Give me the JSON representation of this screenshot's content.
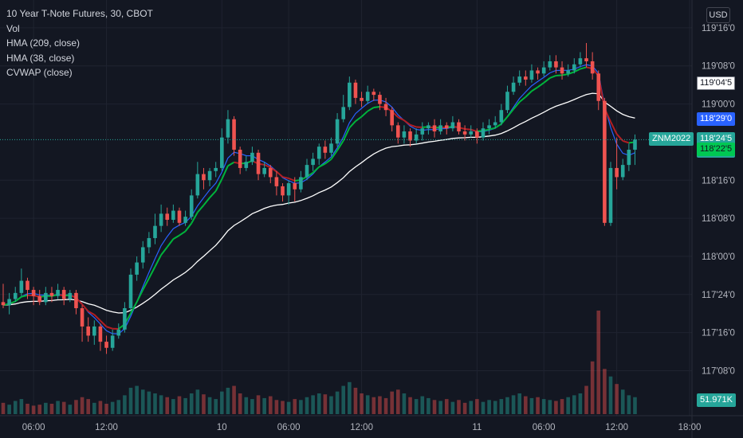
{
  "chart_data": {
    "type": "candlestick",
    "title": "10 Year T-Note Futures, 30, CBOT",
    "legend_lines": [
      "Vol",
      "HMA (209, close)",
      "HMA (38, close)",
      "CVWAP (close)"
    ],
    "currency": "USD",
    "y_ticks": [
      {
        "label": "119'16'0",
        "value": 119.5
      },
      {
        "label": "119'08'0",
        "value": 119.25
      },
      {
        "label": "119'00'0",
        "value": 119.0
      },
      {
        "label": "118'16'0",
        "value": 118.5
      },
      {
        "label": "118'08'0",
        "value": 118.25
      },
      {
        "label": "118'00'0",
        "value": 118.0
      },
      {
        "label": "117'24'0",
        "value": 117.75
      },
      {
        "label": "117'16'0",
        "value": 117.5
      },
      {
        "label": "117'08'0",
        "value": 117.25
      }
    ],
    "ylim": [
      117.08,
      119.63
    ],
    "x_ticks": [
      {
        "label": "06:00",
        "bar": 5
      },
      {
        "label": "12:00",
        "bar": 17
      },
      {
        "label": "10",
        "bar": 36
      },
      {
        "label": "06:00",
        "bar": 47
      },
      {
        "label": "12:00",
        "bar": 59
      },
      {
        "label": "11",
        "bar": 78
      },
      {
        "label": "06:00",
        "bar": 89
      },
      {
        "label": "12:00",
        "bar": 101
      },
      {
        "label": "18:00",
        "bar": 113
      }
    ],
    "price_tags": [
      {
        "label": "119'04'5",
        "value": 119.14,
        "style": "white"
      },
      {
        "label": "118'29'0",
        "value": 118.906,
        "style": "blue"
      },
      {
        "label": "118'24'5",
        "value": 118.766,
        "style": "teal",
        "symbol": "ZNM2022",
        "countdown": "17:17"
      },
      {
        "label": "118'22'5",
        "value": 118.703,
        "style": "green"
      }
    ],
    "volume_label": "51.971K",
    "volume_max": 110,
    "colors": {
      "up": "#26a69a",
      "down": "#ef5350",
      "hma209": "#ffffff",
      "hma38": "#2962ff",
      "cvwap_up": "#00b43c",
      "cvwap_down": "#b21e23",
      "bg": "#131722",
      "grid": "#1f2330"
    },
    "candles": [
      [
        117.7,
        117.68,
        117.82,
        117.66
      ],
      [
        117.68,
        117.72,
        117.76,
        117.62
      ],
      [
        117.72,
        117.76,
        117.8,
        117.7
      ],
      [
        117.76,
        117.84,
        117.92,
        117.74
      ],
      [
        117.84,
        117.78,
        117.86,
        117.72
      ],
      [
        117.78,
        117.74,
        117.8,
        117.68
      ],
      [
        117.74,
        117.7,
        117.78,
        117.68
      ],
      [
        117.7,
        117.76,
        117.8,
        117.68
      ],
      [
        117.76,
        117.74,
        117.8,
        117.7
      ],
      [
        117.74,
        117.78,
        117.82,
        117.72
      ],
      [
        117.78,
        117.72,
        117.8,
        117.68
      ],
      [
        117.72,
        117.76,
        117.78,
        117.7
      ],
      [
        117.76,
        117.66,
        117.78,
        117.62
      ],
      [
        117.66,
        117.54,
        117.68,
        117.44
      ],
      [
        117.54,
        117.48,
        117.6,
        117.44
      ],
      [
        117.48,
        117.54,
        117.58,
        117.42
      ],
      [
        117.54,
        117.44,
        117.56,
        117.38
      ],
      [
        117.44,
        117.4,
        117.48,
        117.36
      ],
      [
        117.4,
        117.48,
        117.52,
        117.38
      ],
      [
        117.48,
        117.52,
        117.56,
        117.46
      ],
      [
        117.52,
        117.66,
        117.7,
        117.5
      ],
      [
        117.66,
        117.88,
        117.92,
        117.64
      ],
      [
        117.88,
        117.96,
        118.0,
        117.84
      ],
      [
        117.96,
        118.06,
        118.1,
        117.92
      ],
      [
        118.06,
        118.12,
        118.16,
        118.02
      ],
      [
        118.12,
        118.2,
        118.28,
        118.08
      ],
      [
        118.2,
        118.28,
        118.34,
        118.16
      ],
      [
        118.28,
        118.24,
        118.32,
        118.2
      ],
      [
        118.24,
        118.3,
        118.34,
        118.22
      ],
      [
        118.3,
        118.22,
        118.32,
        118.2
      ],
      [
        118.22,
        118.26,
        118.3,
        118.2
      ],
      [
        118.26,
        118.4,
        118.44,
        118.24
      ],
      [
        118.4,
        118.54,
        118.62,
        118.38
      ],
      [
        118.54,
        118.5,
        118.58,
        118.44
      ],
      [
        118.5,
        118.56,
        118.58,
        118.46
      ],
      [
        118.56,
        118.58,
        118.62,
        118.52
      ],
      [
        118.58,
        118.78,
        118.84,
        118.56
      ],
      [
        118.78,
        118.9,
        118.96,
        118.74
      ],
      [
        118.9,
        118.7,
        118.92,
        118.66
      ],
      [
        118.7,
        118.58,
        118.72,
        118.54
      ],
      [
        118.58,
        118.62,
        118.66,
        118.56
      ],
      [
        118.62,
        118.68,
        118.72,
        118.6
      ],
      [
        118.68,
        118.54,
        118.7,
        118.5
      ],
      [
        118.54,
        118.58,
        118.62,
        118.52
      ],
      [
        118.58,
        118.52,
        118.6,
        118.48
      ],
      [
        118.52,
        118.46,
        118.56,
        118.4
      ],
      [
        118.46,
        118.4,
        118.48,
        118.36
      ],
      [
        118.4,
        118.48,
        118.5,
        118.34
      ],
      [
        118.48,
        118.44,
        118.52,
        118.36
      ],
      [
        118.44,
        118.52,
        118.56,
        118.42
      ],
      [
        118.52,
        118.6,
        118.64,
        118.5
      ],
      [
        118.6,
        118.64,
        118.68,
        118.56
      ],
      [
        118.64,
        118.72,
        118.74,
        118.6
      ],
      [
        118.72,
        118.68,
        118.76,
        118.64
      ],
      [
        118.68,
        118.74,
        118.78,
        118.66
      ],
      [
        118.74,
        118.9,
        118.94,
        118.72
      ],
      [
        118.9,
        118.98,
        119.06,
        118.88
      ],
      [
        118.98,
        119.14,
        119.18,
        118.96
      ],
      [
        119.14,
        119.04,
        119.16,
        119.0
      ],
      [
        119.04,
        119.02,
        119.08,
        118.98
      ],
      [
        119.02,
        119.08,
        119.12,
        119.0
      ],
      [
        119.08,
        119.06,
        119.1,
        119.02
      ],
      [
        119.06,
        119.0,
        119.08,
        118.96
      ],
      [
        119.0,
        118.96,
        119.04,
        118.92
      ],
      [
        118.96,
        118.86,
        118.98,
        118.82
      ],
      [
        118.86,
        118.78,
        118.88,
        118.74
      ],
      [
        118.78,
        118.82,
        118.86,
        118.74
      ],
      [
        118.82,
        118.76,
        118.84,
        118.72
      ],
      [
        118.76,
        118.8,
        118.84,
        118.74
      ],
      [
        118.8,
        118.84,
        118.88,
        118.76
      ],
      [
        118.84,
        118.86,
        118.88,
        118.8
      ],
      [
        118.86,
        118.82,
        118.9,
        118.78
      ],
      [
        118.82,
        118.86,
        118.9,
        118.8
      ],
      [
        118.86,
        118.84,
        118.88,
        118.8
      ],
      [
        118.84,
        118.88,
        118.92,
        118.82
      ],
      [
        118.88,
        118.82,
        118.9,
        118.8
      ],
      [
        118.82,
        118.8,
        118.86,
        118.76
      ],
      [
        118.8,
        118.82,
        118.86,
        118.78
      ],
      [
        118.82,
        118.78,
        118.84,
        118.74
      ],
      [
        118.78,
        118.84,
        118.88,
        118.76
      ],
      [
        118.84,
        118.86,
        118.9,
        118.8
      ],
      [
        118.86,
        118.88,
        118.92,
        118.84
      ],
      [
        118.88,
        118.96,
        119.0,
        118.86
      ],
      [
        118.96,
        119.08,
        119.12,
        118.94
      ],
      [
        119.08,
        119.14,
        119.18,
        119.06
      ],
      [
        119.14,
        119.18,
        119.22,
        119.12
      ],
      [
        119.18,
        119.16,
        119.22,
        119.12
      ],
      [
        119.16,
        119.22,
        119.26,
        119.14
      ],
      [
        119.22,
        119.2,
        119.24,
        119.16
      ],
      [
        119.2,
        119.24,
        119.28,
        119.18
      ],
      [
        119.24,
        119.28,
        119.32,
        119.22
      ],
      [
        119.28,
        119.24,
        119.32,
        119.2
      ],
      [
        119.24,
        119.2,
        119.28,
        119.16
      ],
      [
        119.2,
        119.22,
        119.26,
        119.18
      ],
      [
        119.22,
        119.26,
        119.3,
        119.2
      ],
      [
        119.26,
        119.3,
        119.34,
        119.24
      ],
      [
        119.3,
        119.28,
        119.4,
        119.24
      ],
      [
        119.28,
        119.2,
        119.34,
        119.16
      ],
      [
        119.2,
        119.02,
        119.22,
        118.96
      ],
      [
        119.02,
        118.22,
        119.04,
        118.2
      ],
      [
        118.22,
        118.58,
        118.62,
        118.2
      ],
      [
        118.58,
        118.52,
        118.78,
        118.44
      ],
      [
        118.52,
        118.6,
        118.64,
        118.5
      ],
      [
        118.6,
        118.7,
        118.74,
        118.56
      ],
      [
        118.7,
        118.766,
        118.8,
        118.6
      ]
    ],
    "volumes": [
      12,
      10,
      14,
      16,
      11,
      9,
      10,
      12,
      11,
      14,
      13,
      10,
      15,
      18,
      16,
      12,
      14,
      11,
      13,
      15,
      20,
      28,
      30,
      26,
      24,
      22,
      20,
      18,
      16,
      19,
      17,
      22,
      26,
      21,
      18,
      16,
      24,
      28,
      30,
      22,
      18,
      16,
      20,
      17,
      19,
      15,
      14,
      13,
      16,
      15,
      18,
      20,
      22,
      21,
      19,
      24,
      30,
      34,
      28,
      22,
      20,
      18,
      19,
      17,
      24,
      26,
      22,
      18,
      16,
      19,
      17,
      15,
      14,
      16,
      13,
      15,
      12,
      14,
      16,
      13,
      15,
      14,
      16,
      18,
      20,
      22,
      19,
      17,
      18,
      16,
      15,
      14,
      16,
      18,
      20,
      22,
      30,
      56,
      110,
      48,
      40,
      32,
      26,
      20,
      18
    ]
  }
}
